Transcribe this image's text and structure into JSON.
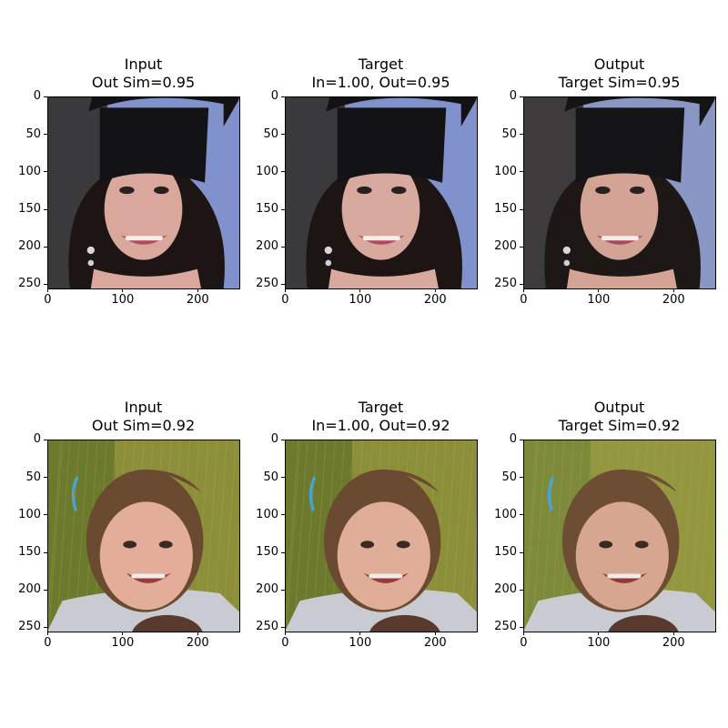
{
  "figure": {
    "panels": [
      {
        "row": 0,
        "col": 0,
        "name": "input-panel-row1",
        "title_lines": [
          "Input",
          "Out Sim=0.95"
        ],
        "image_desc": "graduation-portrait-input",
        "palette": {
          "bg_left": "#3a3a3c",
          "bg_right": "#8091cc",
          "hat": "#131316",
          "skin": "#d9a79b",
          "hair": "#1c1514",
          "lips": "#b44a5a"
        }
      },
      {
        "row": 0,
        "col": 1,
        "name": "target-panel-row1",
        "title_lines": [
          "Target",
          "In=1.00, Out=0.95"
        ],
        "image_desc": "graduation-portrait-target",
        "palette": {
          "bg_left": "#3a3a3c",
          "bg_right": "#8091cc",
          "hat": "#131316",
          "skin": "#d8a99e",
          "hair": "#1c1514",
          "lips": "#b44a5a"
        }
      },
      {
        "row": 0,
        "col": 2,
        "name": "output-panel-row1",
        "title_lines": [
          "Output",
          "Target Sim=0.95"
        ],
        "image_desc": "graduation-portrait-output",
        "palette": {
          "bg_left": "#3d3b3c",
          "bg_right": "#8a97c4",
          "hat": "#141416",
          "skin": "#d3a496",
          "hair": "#1d1716",
          "lips": "#a84b55"
        }
      },
      {
        "row": 1,
        "col": 0,
        "name": "input-panel-row2",
        "title_lines": [
          "Input",
          "Out Sim=0.92"
        ],
        "image_desc": "child-in-grass-input",
        "palette": {
          "bg_left": "#6b7a2c",
          "bg_right": "#8c8f3a",
          "hat": "#6a4a30",
          "skin": "#e2ae9a",
          "hair": "#6a4a30",
          "lips": "#9a3a3a"
        }
      },
      {
        "row": 1,
        "col": 1,
        "name": "target-panel-row2",
        "title_lines": [
          "Target",
          "In=1.00, Out=0.92"
        ],
        "image_desc": "child-in-grass-target",
        "palette": {
          "bg_left": "#6b7a2c",
          "bg_right": "#8c8f3a",
          "hat": "#6a4a30",
          "skin": "#e0ad99",
          "hair": "#6a4a30",
          "lips": "#9a3a3a"
        }
      },
      {
        "row": 1,
        "col": 2,
        "name": "output-panel-row2",
        "title_lines": [
          "Output",
          "Target Sim=0.92"
        ],
        "image_desc": "child-in-grass-output",
        "palette": {
          "bg_left": "#7d8a3a",
          "bg_right": "#93973f",
          "hat": "#6d4d34",
          "skin": "#d6a691",
          "hair": "#6d4d34",
          "lips": "#93393a"
        }
      }
    ],
    "axis": {
      "y_ticks": [
        "0",
        "50",
        "100",
        "150",
        "200",
        "250"
      ],
      "x_ticks": [
        "0",
        "100",
        "200"
      ],
      "y_values": [
        0,
        50,
        100,
        150,
        200,
        250
      ],
      "x_values": [
        0,
        100,
        200
      ],
      "pixel_extent": 256
    }
  }
}
